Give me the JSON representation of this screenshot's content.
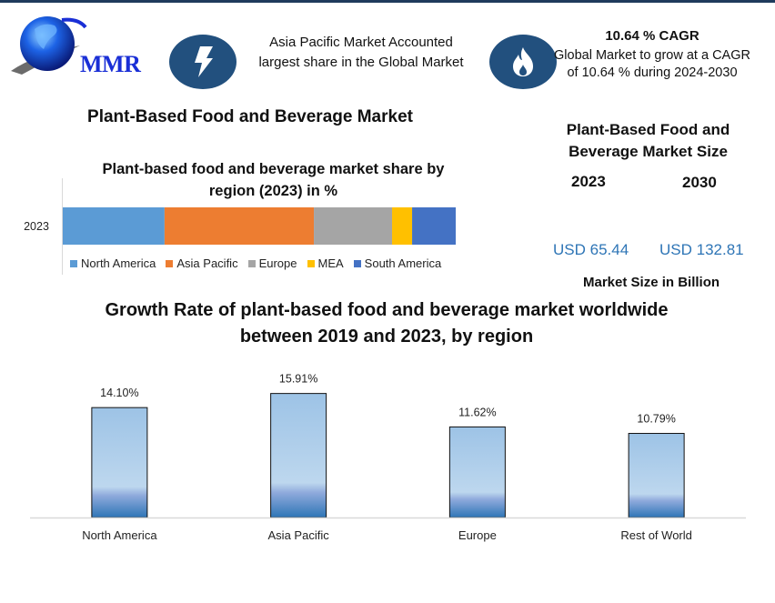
{
  "brand": {
    "logo_text": "MMR",
    "logo_icon": "globe-icon"
  },
  "highlights": [
    {
      "icon": "lightning-bolt-icon",
      "text": "Asia Pacific Market Accounted largest share in the Global Market"
    },
    {
      "icon": "flame-icon",
      "title": "10.64 % CAGR",
      "text": "Global Market to grow at a CAGR of 10.64 % during 2024-2030"
    }
  ],
  "main_title": "Plant-Based Food and Beverage Market",
  "market_size": {
    "title": "Plant-Based Food and Beverage Market Size",
    "year_a": "2023",
    "year_b": "2030",
    "value_a": "USD 65.44",
    "value_b": "USD 132.81",
    "unit_label": "Market Size in Billion"
  },
  "colors": {
    "accent_dark_blue": "#22507e",
    "usd_blue": "#2e75b6"
  },
  "chart_data": [
    {
      "type": "bar",
      "orientation": "horizontal-stacked-100",
      "title": "Plant-based food and beverage market share by region (2023) in %",
      "categories": [
        "2023"
      ],
      "series": [
        {
          "name": "North America",
          "values": [
            25.9
          ],
          "color": "#5b9bd5"
        },
        {
          "name": "Asia Pacific",
          "values": [
            38.0
          ],
          "color": "#ed7d31"
        },
        {
          "name": "Europe",
          "values": [
            19.9
          ],
          "color": "#a5a5a5"
        },
        {
          "name": "MEA",
          "values": [
            5.1
          ],
          "color": "#ffc000"
        },
        {
          "name": "South America",
          "values": [
            11.1
          ],
          "color": "#4472c4"
        }
      ],
      "xlim": [
        0,
        100
      ],
      "legend": "bottom",
      "grid": false
    },
    {
      "type": "bar",
      "title": "Growth Rate of plant-based food and beverage market worldwide between 2019 and 2023, by region",
      "categories": [
        "North America",
        "Asia Pacific",
        "Europe",
        "Rest of World"
      ],
      "values": [
        14.1,
        15.91,
        11.62,
        10.79
      ],
      "data_labels": [
        "14.10%",
        "15.91%",
        "11.62%",
        "10.79%"
      ],
      "xlabel": "",
      "ylabel": "",
      "ylim": [
        0,
        17.5
      ],
      "grid": false,
      "legend": "none"
    }
  ]
}
